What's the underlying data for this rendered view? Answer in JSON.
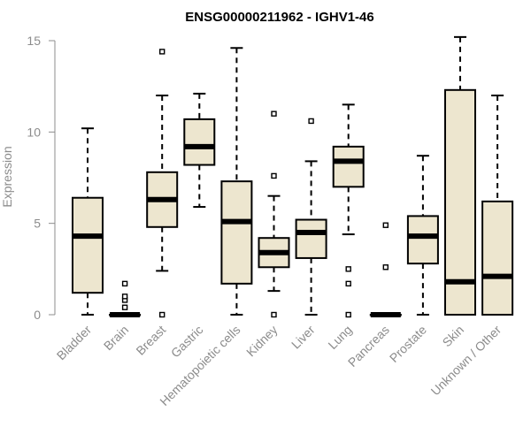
{
  "chart_data": {
    "type": "boxplot",
    "title": "ENSG00000211962 - IGHV1-46",
    "xlabel": "",
    "ylabel": "Expression",
    "ylim": [
      0,
      15
    ],
    "yticks": [
      0,
      5,
      10,
      15
    ],
    "grid": false,
    "legend": "none",
    "colors": {
      "box_fill": "#ede6cf",
      "box_stroke": "#000000",
      "median": "#000000",
      "axis": "#8c8c8c"
    },
    "categories": [
      "Bladder",
      "Brain",
      "Breast",
      "Gastric",
      "Hematopoietic cells",
      "Kidney",
      "Liver",
      "Lung",
      "Pancreas",
      "Prostate",
      "Skin",
      "Unknown / Other"
    ],
    "boxes": [
      {
        "category": "Bladder",
        "min": 0,
        "q1": 1.2,
        "median": 4.3,
        "q3": 6.4,
        "max": 10.2,
        "outliers": []
      },
      {
        "category": "Brain",
        "min": 0,
        "q1": 0,
        "median": 0,
        "q3": 0,
        "max": 0,
        "outliers": [
          0.4,
          0.8,
          1.0,
          1.7
        ]
      },
      {
        "category": "Breast",
        "min": 2.4,
        "q1": 4.8,
        "median": 6.3,
        "q3": 7.8,
        "max": 12.0,
        "outliers": [
          0,
          14.4
        ]
      },
      {
        "category": "Gastric",
        "min": 5.9,
        "q1": 8.2,
        "median": 9.2,
        "q3": 10.7,
        "max": 12.1,
        "outliers": []
      },
      {
        "category": "Hematopoietic cells",
        "min": 0,
        "q1": 1.7,
        "median": 5.1,
        "q3": 7.3,
        "max": 14.6,
        "outliers": []
      },
      {
        "category": "Kidney",
        "min": 1.3,
        "q1": 2.6,
        "median": 3.4,
        "q3": 4.2,
        "max": 6.5,
        "outliers": [
          0,
          7.6,
          11.0
        ]
      },
      {
        "category": "Liver",
        "min": 0,
        "q1": 3.1,
        "median": 4.5,
        "q3": 5.2,
        "max": 8.4,
        "outliers": [
          10.6
        ]
      },
      {
        "category": "Lung",
        "min": 4.4,
        "q1": 7.0,
        "median": 8.4,
        "q3": 9.2,
        "max": 11.5,
        "outliers": [
          0,
          1.7,
          2.5
        ]
      },
      {
        "category": "Pancreas",
        "min": 0,
        "q1": 0,
        "median": 0,
        "q3": 0,
        "max": 0,
        "outliers": [
          2.6,
          4.9
        ]
      },
      {
        "category": "Prostate",
        "min": 0,
        "q1": 2.8,
        "median": 4.3,
        "q3": 5.4,
        "max": 8.7,
        "outliers": []
      },
      {
        "category": "Skin",
        "min": 0,
        "q1": 0,
        "median": 1.8,
        "q3": 12.3,
        "max": 15.2,
        "outliers": []
      },
      {
        "category": "Unknown / Other",
        "min": 0,
        "q1": 0,
        "median": 2.1,
        "q3": 6.2,
        "max": 12.0,
        "outliers": []
      }
    ]
  }
}
